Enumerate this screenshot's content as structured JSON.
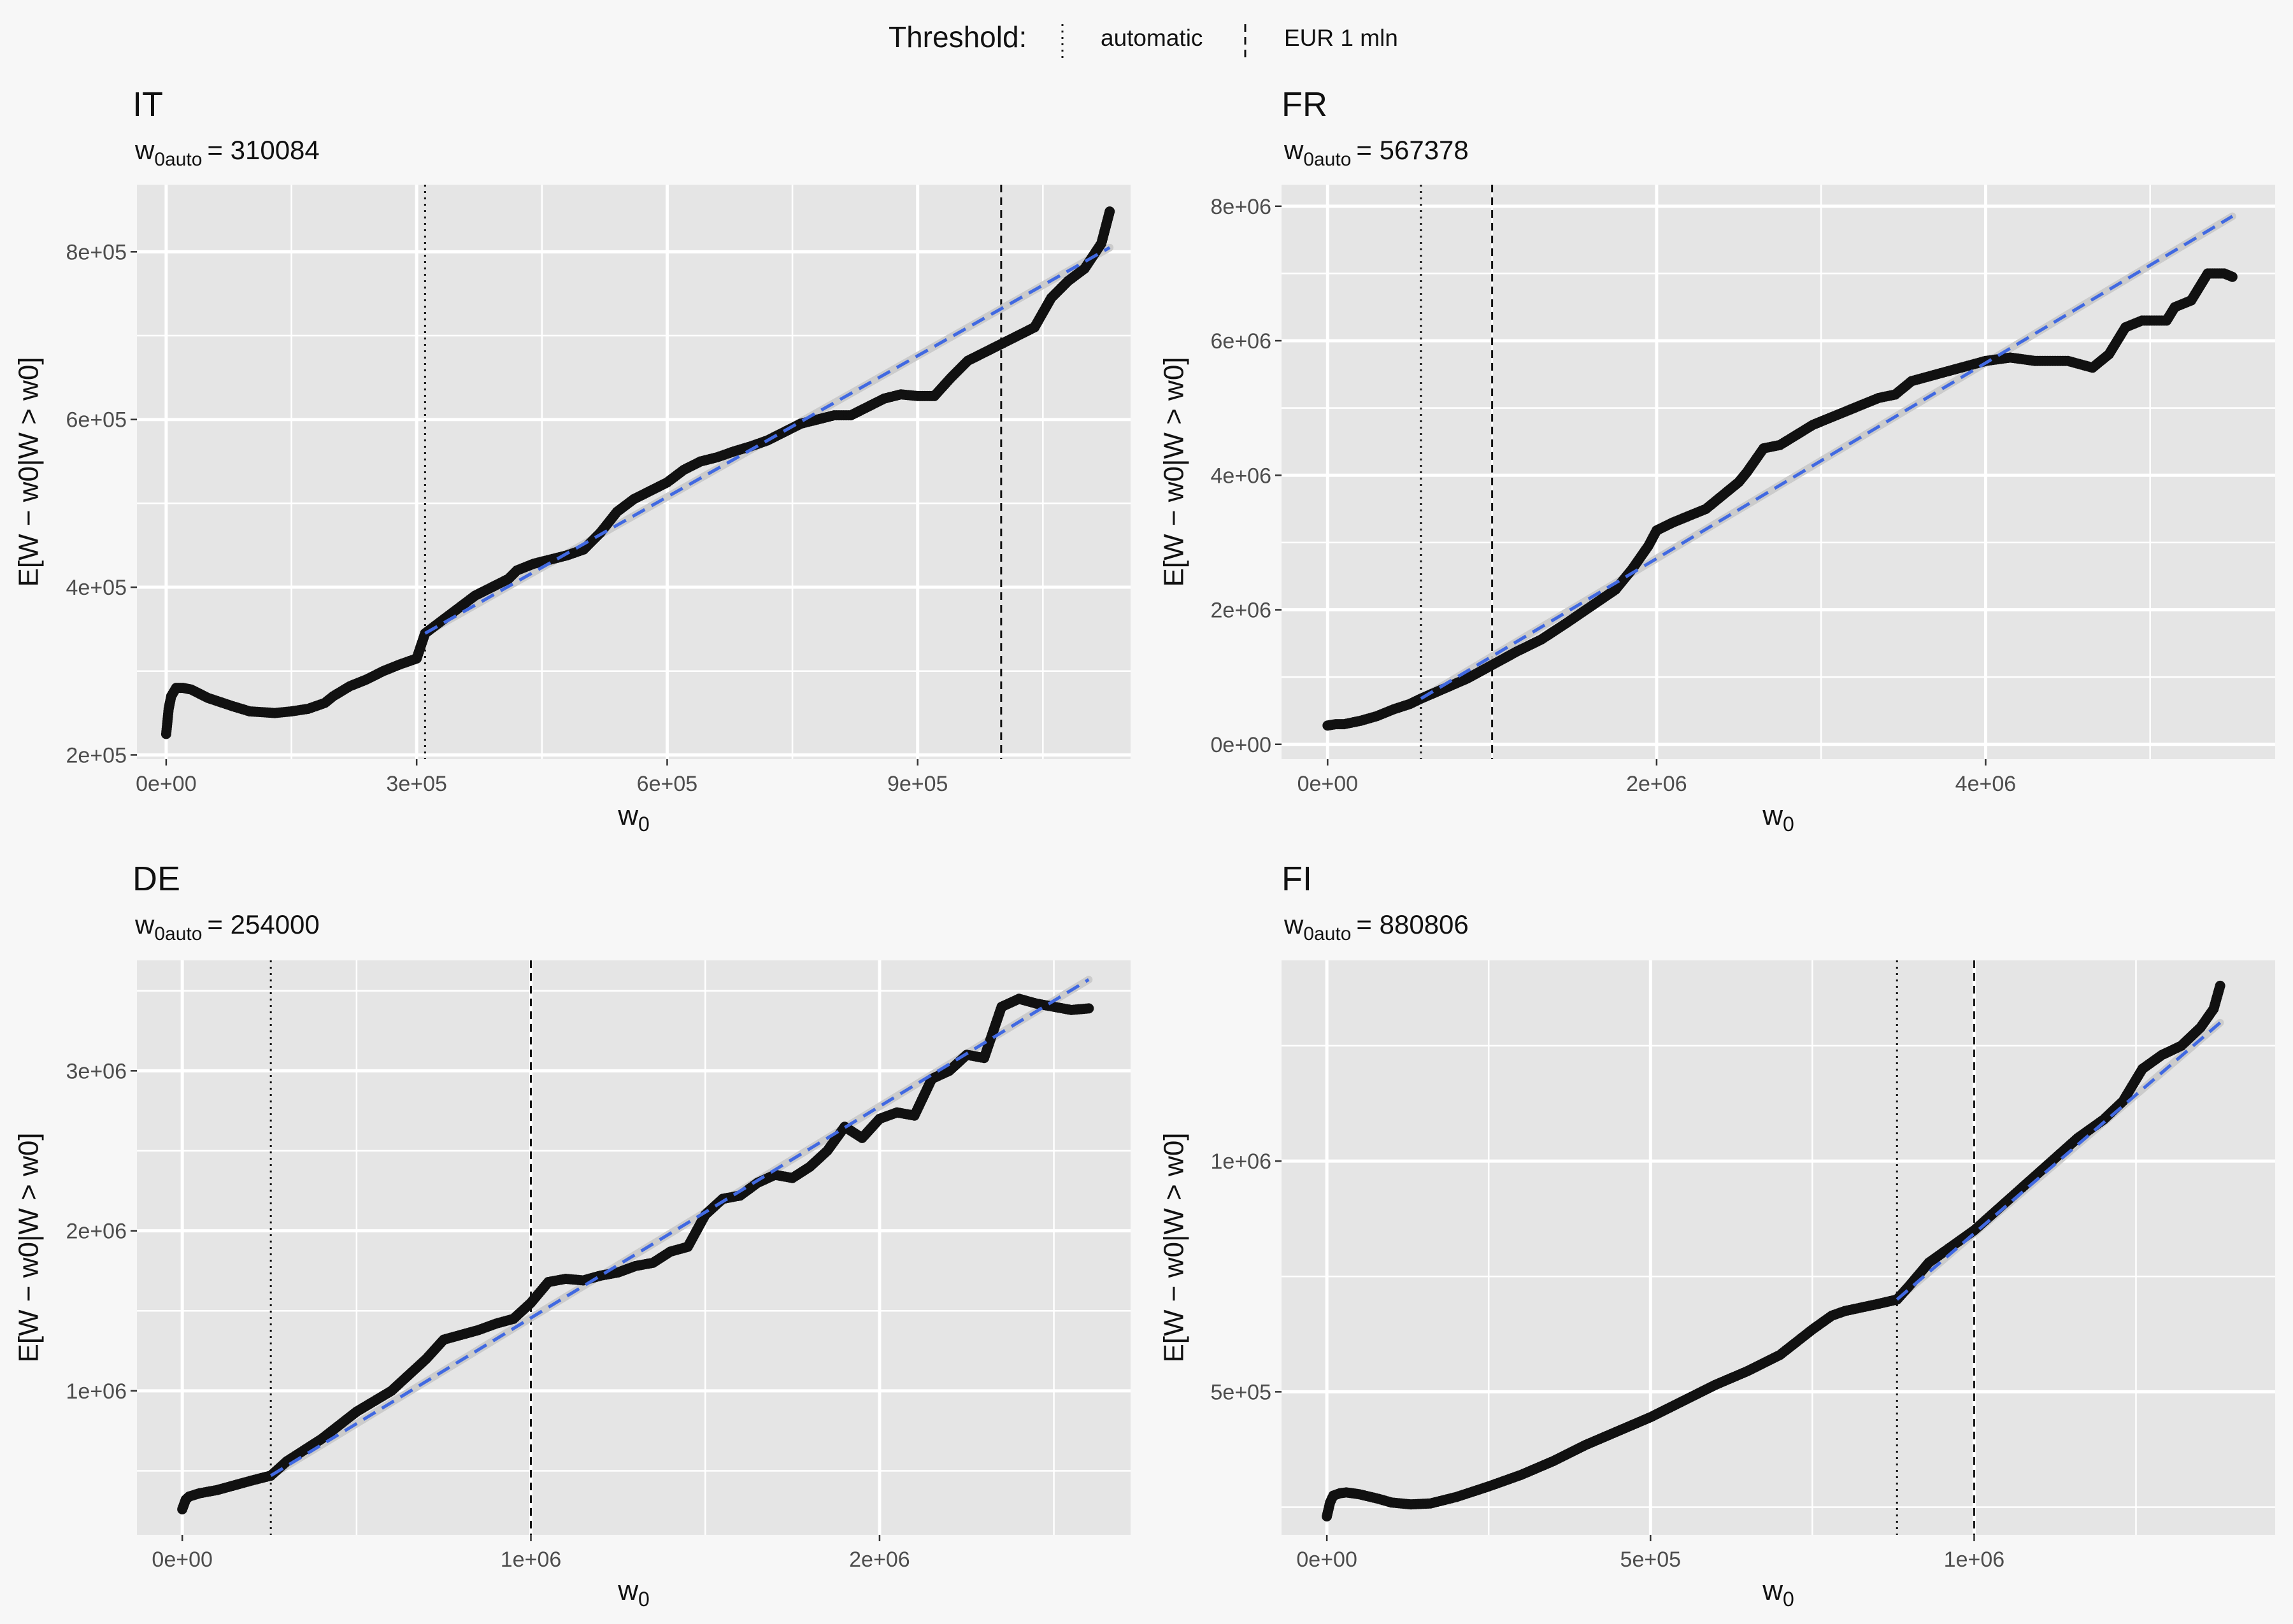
{
  "legend": {
    "title": "Threshold:",
    "items": [
      {
        "label": "automatic",
        "dash": "dotted"
      },
      {
        "label": "EUR 1 mln",
        "dash": "dashed"
      }
    ]
  },
  "colors": {
    "panel_bg": "#e5e5e5",
    "page_bg": "#f7f7f7",
    "grid": "#ffffff",
    "points": "#111111",
    "fit_line": "#4169e1",
    "band": "#c9c9c9",
    "vline": "#111111"
  },
  "chart_data": [
    {
      "type": "scatter",
      "title": "IT",
      "subtitle_lhs_main": "w",
      "subtitle_lhs_sub": "0auto",
      "subtitle_rhs": "= 310084",
      "w0_auto": 310084,
      "eur_threshold": 1000000,
      "xlabel_main": "w",
      "xlabel_sub": "0",
      "ylabel": "E[W − w0|W > w0]",
      "xlim": [
        -35000,
        1155000
      ],
      "ylim": [
        195000,
        880000
      ],
      "xticks": [
        {
          "value": 0,
          "label": "0e+00"
        },
        {
          "value": 300000,
          "label": "3e+05"
        },
        {
          "value": 600000,
          "label": "6e+05"
        },
        {
          "value": 900000,
          "label": "9e+05"
        }
      ],
      "yticks": [
        {
          "value": 200000,
          "label": "2e+05"
        },
        {
          "value": 400000,
          "label": "4e+05"
        },
        {
          "value": 600000,
          "label": "6e+05"
        },
        {
          "value": 800000,
          "label": "8e+05"
        }
      ],
      "fit_line": {
        "x": [
          310084,
          1130000
        ],
        "y": [
          345000,
          805000
        ]
      },
      "points": {
        "x": [
          0,
          3000,
          6000,
          12000,
          20000,
          30000,
          50000,
          80000,
          100000,
          130000,
          150000,
          170000,
          190000,
          200000,
          220000,
          240000,
          260000,
          280000,
          300000,
          310084,
          330000,
          350000,
          370000,
          390000,
          410000,
          420000,
          440000,
          460000,
          480000,
          500000,
          520000,
          540000,
          560000,
          580000,
          600000,
          620000,
          640000,
          660000,
          680000,
          700000,
          720000,
          740000,
          760000,
          780000,
          800000,
          820000,
          840000,
          860000,
          880000,
          900000,
          920000,
          940000,
          960000,
          980000,
          1000000,
          1020000,
          1040000,
          1060000,
          1080000,
          1100000,
          1120000,
          1130000
        ],
        "y": [
          225000,
          255000,
          270000,
          280000,
          280000,
          278000,
          268000,
          258000,
          252000,
          250000,
          252000,
          255000,
          262000,
          270000,
          282000,
          290000,
          300000,
          308000,
          315000,
          345000,
          360000,
          375000,
          390000,
          400000,
          410000,
          420000,
          428000,
          433000,
          438000,
          445000,
          465000,
          490000,
          505000,
          515000,
          525000,
          540000,
          550000,
          555000,
          562000,
          568000,
          575000,
          585000,
          595000,
          600000,
          605000,
          605000,
          615000,
          625000,
          630000,
          628000,
          628000,
          650000,
          670000,
          680000,
          690000,
          700000,
          710000,
          745000,
          765000,
          780000,
          810000,
          848000
        ]
      }
    },
    {
      "type": "scatter",
      "title": "FR",
      "subtitle_lhs_main": "w",
      "subtitle_lhs_sub": "0auto",
      "subtitle_rhs": "= 567378",
      "w0_auto": 567378,
      "eur_threshold": 1000000,
      "xlabel_main": "w",
      "xlabel_sub": "0",
      "ylabel": "E[W − w0|W > w0]",
      "xlim": [
        -280000,
        5760000
      ],
      "ylim": [
        -220000,
        8320000
      ],
      "xticks": [
        {
          "value": 0,
          "label": "0e+00"
        },
        {
          "value": 2000000,
          "label": "2e+06"
        },
        {
          "value": 4000000,
          "label": "4e+06"
        }
      ],
      "yticks": [
        {
          "value": 0,
          "label": "0e+00"
        },
        {
          "value": 2000000,
          "label": "2e+06"
        },
        {
          "value": 4000000,
          "label": "4e+06"
        },
        {
          "value": 6000000,
          "label": "6e+06"
        },
        {
          "value": 8000000,
          "label": "8e+06"
        }
      ],
      "fit_line": {
        "x": [
          567378,
          5500000
        ],
        "y": [
          680000,
          7850000
        ]
      },
      "points": {
        "x": [
          0,
          50000,
          100000,
          200000,
          300000,
          400000,
          500000,
          567378,
          700000,
          850000,
          1000000,
          1150000,
          1300000,
          1450000,
          1600000,
          1750000,
          1850000,
          1950000,
          2000000,
          2100000,
          2200000,
          2300000,
          2400000,
          2500000,
          2550000,
          2650000,
          2750000,
          2850000,
          2950000,
          3050000,
          3150000,
          3250000,
          3350000,
          3450000,
          3550000,
          3700000,
          3850000,
          4000000,
          4150000,
          4300000,
          4500000,
          4650000,
          4750000,
          4850000,
          4950000,
          5100000,
          5150000,
          5250000,
          5350000,
          5450000,
          5500000
        ],
        "y": [
          280000,
          300000,
          300000,
          350000,
          420000,
          520000,
          600000,
          680000,
          820000,
          980000,
          1180000,
          1380000,
          1560000,
          1800000,
          2050000,
          2300000,
          2600000,
          2950000,
          3180000,
          3300000,
          3400000,
          3500000,
          3700000,
          3900000,
          4050000,
          4400000,
          4450000,
          4600000,
          4750000,
          4850000,
          4950000,
          5050000,
          5150000,
          5200000,
          5400000,
          5500000,
          5600000,
          5700000,
          5750000,
          5700000,
          5700000,
          5600000,
          5800000,
          6200000,
          6300000,
          6300000,
          6500000,
          6600000,
          7000000,
          7000000,
          6950000
        ]
      }
    },
    {
      "type": "scatter",
      "title": "DE",
      "subtitle_lhs_main": "w",
      "subtitle_lhs_sub": "0auto",
      "subtitle_rhs": "= 254000",
      "w0_auto": 254000,
      "eur_threshold": 1000000,
      "xlabel_main": "w",
      "xlabel_sub": "0",
      "ylabel": "E[W − w0|W > w0]",
      "xlim": [
        -130000,
        2720000
      ],
      "ylim": [
        100000,
        3690000
      ],
      "xticks": [
        {
          "value": 0,
          "label": "0e+00"
        },
        {
          "value": 1000000,
          "label": "1e+06"
        },
        {
          "value": 2000000,
          "label": "2e+06"
        }
      ],
      "yticks": [
        {
          "value": 1000000,
          "label": "1e+06"
        },
        {
          "value": 2000000,
          "label": "2e+06"
        },
        {
          "value": 3000000,
          "label": "3e+06"
        }
      ],
      "fit_line": {
        "x": [
          254000,
          2600000
        ],
        "y": [
          470000,
          3570000
        ]
      },
      "points": {
        "x": [
          0,
          10000,
          20000,
          50000,
          100000,
          150000,
          200000,
          254000,
          300000,
          400000,
          500000,
          600000,
          700000,
          750000,
          800000,
          850000,
          900000,
          950000,
          1000000,
          1050000,
          1100000,
          1150000,
          1200000,
          1250000,
          1300000,
          1350000,
          1400000,
          1450000,
          1500000,
          1550000,
          1600000,
          1650000,
          1700000,
          1750000,
          1800000,
          1850000,
          1900000,
          1950000,
          2000000,
          2050000,
          2100000,
          2150000,
          2200000,
          2250000,
          2300000,
          2350000,
          2400000,
          2450000,
          2500000,
          2550000,
          2600000
        ],
        "y": [
          260000,
          320000,
          340000,
          360000,
          380000,
          410000,
          440000,
          470000,
          560000,
          700000,
          870000,
          1000000,
          1200000,
          1320000,
          1350000,
          1380000,
          1420000,
          1450000,
          1550000,
          1680000,
          1700000,
          1690000,
          1720000,
          1740000,
          1780000,
          1800000,
          1870000,
          1900000,
          2100000,
          2200000,
          2220000,
          2300000,
          2350000,
          2330000,
          2400000,
          2500000,
          2650000,
          2580000,
          2700000,
          2740000,
          2720000,
          2950000,
          3000000,
          3100000,
          3080000,
          3400000,
          3450000,
          3420000,
          3400000,
          3380000,
          3390000
        ]
      }
    },
    {
      "type": "scatter",
      "title": "FI",
      "subtitle_lhs_main": "w",
      "subtitle_lhs_sub": "0auto",
      "subtitle_rhs": "= 880806",
      "w0_auto": 880806,
      "eur_threshold": 1000000,
      "xlabel_main": "w",
      "xlabel_sub": "0",
      "ylabel": "E[W − w0|W > w0]",
      "xlim": [
        -70000,
        1465000
      ],
      "ylim": [
        190000,
        1435000
      ],
      "xticks": [
        {
          "value": 0,
          "label": "0e+00"
        },
        {
          "value": 500000,
          "label": "5e+05"
        },
        {
          "value": 1000000,
          "label": "1e+06"
        }
      ],
      "yticks": [
        {
          "value": 500000,
          "label": "5e+05"
        },
        {
          "value": 1000000,
          "label": "1e+06"
        }
      ],
      "fit_line": {
        "x": [
          880806,
          1380000
        ],
        "y": [
          700000,
          1300000
        ]
      },
      "points": {
        "x": [
          0,
          5000,
          10000,
          20000,
          30000,
          50000,
          80000,
          100000,
          130000,
          160000,
          200000,
          250000,
          300000,
          350000,
          400000,
          450000,
          500000,
          550000,
          600000,
          650000,
          700000,
          750000,
          780000,
          800000,
          850000,
          880806,
          900000,
          930000,
          960000,
          1000000,
          1040000,
          1080000,
          1120000,
          1160000,
          1200000,
          1230000,
          1260000,
          1290000,
          1320000,
          1350000,
          1370000,
          1380000
        ],
        "y": [
          230000,
          260000,
          275000,
          280000,
          282000,
          278000,
          268000,
          260000,
          256000,
          258000,
          272000,
          295000,
          320000,
          350000,
          385000,
          415000,
          445000,
          480000,
          515000,
          545000,
          580000,
          635000,
          665000,
          675000,
          690000,
          700000,
          730000,
          780000,
          810000,
          850000,
          900000,
          950000,
          1000000,
          1050000,
          1090000,
          1130000,
          1200000,
          1230000,
          1250000,
          1290000,
          1330000,
          1380000
        ]
      }
    }
  ]
}
